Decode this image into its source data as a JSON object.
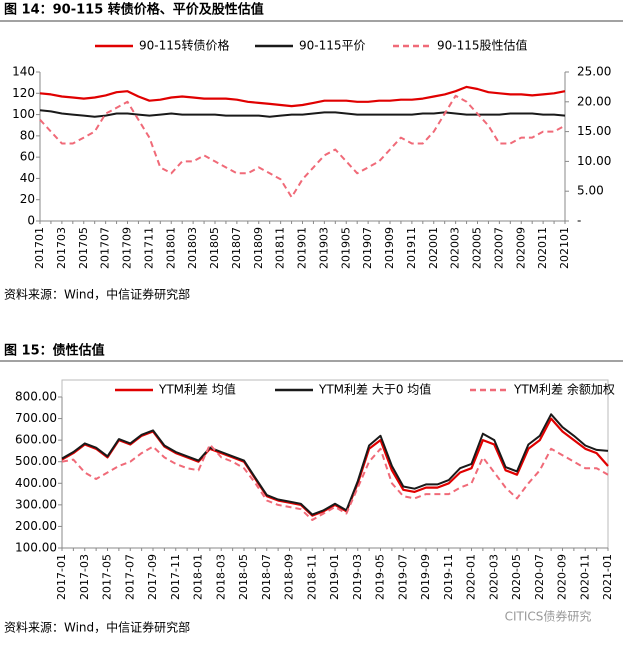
{
  "chart_data": [
    {
      "type": "line",
      "title": "图 14：90-115 转债价格、平价及股性估值",
      "source": "资料来源：Wind，中信证券研究部",
      "categories": [
        "201701",
        null,
        "201703",
        null,
        "201705",
        null,
        "201707",
        null,
        "201709",
        null,
        "201711",
        null,
        "201801",
        null,
        "201803",
        null,
        "201805",
        null,
        "201807",
        null,
        "201809",
        null,
        "201811",
        null,
        "201901",
        null,
        "201903",
        null,
        "201905",
        null,
        "201907",
        null,
        "201909",
        null,
        "201911",
        null,
        "202001",
        null,
        "202003",
        null,
        "202005",
        null,
        "202007",
        null,
        "202009",
        null,
        "202011",
        null,
        "202101"
      ],
      "ylim": [
        0,
        140
      ],
      "yticks": [
        0,
        20,
        40,
        60,
        80,
        100,
        120,
        140
      ],
      "y2lim": [
        0,
        25
      ],
      "y2ticks": [
        {
          "value": 0,
          "label": "-"
        },
        {
          "value": 5,
          "label": "5.00"
        },
        {
          "value": 10,
          "label": "10.00"
        },
        {
          "value": 15,
          "label": "15.00"
        },
        {
          "value": 20,
          "label": "20.00"
        },
        {
          "value": 25,
          "label": "25.00"
        }
      ],
      "series": [
        {
          "name": "90-115转债价格",
          "color": "#e00000",
          "style": "solid",
          "values": [
            120,
            119,
            117,
            116,
            115,
            116,
            118,
            121,
            122,
            117,
            113,
            114,
            116,
            117,
            116,
            115,
            115,
            115,
            114,
            112,
            111,
            110,
            109,
            108,
            109,
            111,
            113,
            113,
            113,
            112,
            112,
            113,
            113,
            114,
            114,
            115,
            117,
            119,
            122,
            126,
            124,
            121,
            120,
            119,
            119,
            118,
            119,
            120,
            122
          ]
        },
        {
          "name": "90-115平价",
          "color": "#1a1a1a",
          "style": "solid",
          "values": [
            104,
            103,
            101,
            100,
            99,
            98,
            99,
            101,
            101,
            100,
            99,
            100,
            101,
            100,
            100,
            100,
            100,
            99,
            99,
            99,
            99,
            98,
            99,
            100,
            100,
            101,
            102,
            102,
            101,
            100,
            100,
            100,
            100,
            100,
            100,
            101,
            101,
            102,
            101,
            100,
            100,
            100,
            100,
            101,
            101,
            101,
            100,
            100,
            99
          ]
        },
        {
          "name": "90-115股性估值",
          "color": "#f06a78",
          "style": "dashed",
          "axis": "y2",
          "values": [
            17,
            15,
            13,
            13,
            14,
            15,
            18,
            19,
            20,
            17,
            14,
            9,
            8,
            10,
            10,
            11,
            10,
            9,
            8,
            8,
            9,
            8,
            7,
            4,
            7,
            9,
            11,
            12,
            10,
            8,
            9,
            10,
            12,
            14,
            13,
            13,
            15,
            18,
            21,
            20,
            18,
            16,
            13,
            13,
            14,
            14,
            15,
            15,
            16
          ]
        }
      ]
    },
    {
      "type": "line",
      "title": "图 15：债性估值",
      "source": "资料来源：Wind，中信证券研究部",
      "categories": [
        "2017-01",
        null,
        "2017-03",
        null,
        "2017-05",
        null,
        "2017-07",
        null,
        "2017-09",
        null,
        "2017-11",
        null,
        "2018-01",
        null,
        "2018-03",
        null,
        "2018-05",
        null,
        "2018-07",
        null,
        "2018-09",
        null,
        "2018-11",
        null,
        "2019-01",
        null,
        "2019-03",
        null,
        "2019-05",
        null,
        "2019-07",
        null,
        "2019-09",
        null,
        "2019-11",
        null,
        "2020-01",
        null,
        "2020-03",
        null,
        "2020-05",
        null,
        "2020-07",
        null,
        "2020-09",
        null,
        "2020-11",
        null,
        "2021-01"
      ],
      "ylim": [
        100,
        800
      ],
      "yticks": [
        {
          "value": 100,
          "label": "100.00"
        },
        {
          "value": 200,
          "label": "200.00"
        },
        {
          "value": 300,
          "label": "300.00"
        },
        {
          "value": 400,
          "label": "400.00"
        },
        {
          "value": 500,
          "label": "500.00"
        },
        {
          "value": 600,
          "label": "600.00"
        },
        {
          "value": 700,
          "label": "700.00"
        },
        {
          "value": 800,
          "label": "800.00"
        }
      ],
      "series": [
        {
          "name": "YTM利差 均值",
          "color": "#e00000",
          "style": "solid",
          "values": [
            510,
            540,
            580,
            560,
            520,
            600,
            580,
            620,
            640,
            570,
            540,
            520,
            500,
            560,
            540,
            520,
            500,
            420,
            340,
            320,
            310,
            300,
            250,
            270,
            300,
            270,
            400,
            560,
            600,
            460,
            370,
            360,
            380,
            380,
            400,
            450,
            470,
            600,
            580,
            460,
            440,
            560,
            600,
            700,
            640,
            600,
            560,
            540,
            480
          ]
        },
        {
          "name": "YTM利差 大于0 均值",
          "color": "#1a1a1a",
          "style": "solid",
          "values": [
            515,
            545,
            585,
            565,
            525,
            605,
            585,
            625,
            645,
            575,
            545,
            525,
            505,
            565,
            545,
            525,
            505,
            425,
            345,
            325,
            315,
            305,
            255,
            275,
            305,
            275,
            410,
            575,
            620,
            480,
            385,
            375,
            395,
            395,
            415,
            470,
            490,
            630,
            600,
            475,
            455,
            580,
            620,
            720,
            660,
            620,
            575,
            555,
            550
          ]
        },
        {
          "name": "YTM利差 余额加权",
          "color": "#f06a78",
          "style": "dashed",
          "values": [
            500,
            510,
            450,
            420,
            450,
            480,
            500,
            540,
            570,
            520,
            490,
            470,
            460,
            580,
            520,
            500,
            470,
            400,
            320,
            300,
            290,
            280,
            230,
            260,
            290,
            260,
            380,
            500,
            560,
            400,
            340,
            330,
            350,
            350,
            350,
            380,
            400,
            520,
            450,
            380,
            330,
            400,
            460,
            560,
            530,
            500,
            470,
            470,
            440
          ]
        }
      ]
    }
  ],
  "watermark": "CITICS债券研究"
}
